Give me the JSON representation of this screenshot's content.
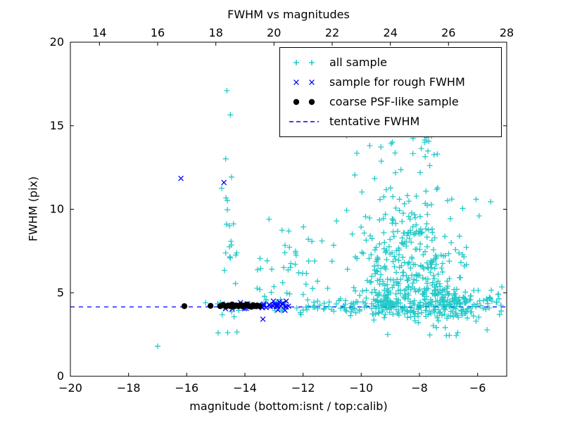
{
  "chart_data": {
    "type": "scatter",
    "title": "FWHM vs magnitudes",
    "xlabel": "magnitude (bottom:isnt / top:calib)",
    "ylabel": "FWHM (pix)",
    "xlim": [
      -20,
      -5
    ],
    "ylim": [
      0,
      20
    ],
    "grid": false,
    "legend_position": "upper right",
    "colors": {
      "background": "#ffffff",
      "axis": "#000000"
    },
    "x_ticks_bottom": {
      "values": [
        -20,
        -18,
        -16,
        -14,
        -12,
        -10,
        -8,
        -6
      ],
      "labels": [
        "−20",
        "−18",
        "−16",
        "−14",
        "−12",
        "−10",
        "−8",
        "−6"
      ]
    },
    "x_ticks_top": {
      "values": [
        14,
        16,
        18,
        20,
        22,
        24,
        26,
        28
      ],
      "labels": [
        "14",
        "16",
        "18",
        "20",
        "22",
        "24",
        "26",
        "28"
      ],
      "offset_from_bottom": 33
    },
    "y_ticks": {
      "values": [
        0,
        5,
        10,
        15,
        20
      ],
      "labels": [
        "0",
        "5",
        "10",
        "15",
        "20"
      ]
    },
    "tentative_fwhm_y": 4.15,
    "series": [
      {
        "name": "all sample",
        "marker": "plus",
        "color": "#00bfbf",
        "points": [
          [
            -17.0,
            1.8
          ],
          [
            -14.62,
            17.1
          ],
          [
            -14.5,
            15.65
          ],
          [
            -15.35,
            4.4
          ],
          [
            -14.92,
            2.6
          ],
          [
            -10.5,
            14.4
          ],
          [
            -10.15,
            13.35
          ],
          [
            -10.85,
            9.3
          ],
          [
            -11.35,
            8.1
          ],
          [
            -11.6,
            6.9
          ],
          [
            -6.05,
            10.6
          ],
          [
            -5.55,
            10.45
          ],
          [
            -5.95,
            9.6
          ],
          [
            -5.3,
            4.9
          ],
          [
            -5.2,
            4.25
          ],
          [
            -7.35,
            15.2
          ],
          [
            -8.05,
            15.45
          ],
          [
            -8.6,
            15.1
          ],
          [
            -12.15,
            6.2
          ],
          [
            -12.0,
            4.9
          ]
        ],
        "clusters": [
          {
            "n": 8,
            "x": {
              "dist": "uniform",
              "min": -15.0,
              "max": -13.0
            },
            "y": {
              "dist": "gauss",
              "mean": 4.3,
              "sd": 0.3,
              "min": 3.6,
              "max": 5.2
            }
          },
          {
            "n": 25,
            "x": {
              "dist": "uniform",
              "min": -13.0,
              "max": -11.2
            },
            "y": {
              "dist": "gauss",
              "mean": 4.2,
              "sd": 0.22,
              "min": 3.5,
              "max": 5.0
            }
          },
          {
            "n": 40,
            "x": {
              "dist": "uniform",
              "min": -11.2,
              "max": -9.6
            },
            "y": {
              "dist": "gauss",
              "mean": 4.2,
              "sd": 0.28,
              "min": 3.2,
              "max": 5.3
            }
          },
          {
            "n": 130,
            "x": {
              "dist": "uniform",
              "min": -9.6,
              "max": -7.9
            },
            "y": {
              "dist": "gauss",
              "mean": 4.3,
              "sd": 0.38,
              "min": 3.0,
              "max": 5.6
            }
          },
          {
            "n": 130,
            "x": {
              "dist": "uniform",
              "min": -7.9,
              "max": -6.4
            },
            "y": {
              "dist": "gauss",
              "mean": 4.3,
              "sd": 0.45,
              "min": 2.8,
              "max": 5.8
            }
          },
          {
            "n": 40,
            "x": {
              "dist": "uniform",
              "min": -6.4,
              "max": -5.15
            },
            "y": {
              "dist": "gauss",
              "mean": 4.3,
              "sd": 0.5,
              "min": 3.0,
              "max": 6.2
            }
          },
          {
            "n": 270,
            "x": {
              "dist": "gauss",
              "mean": -8.35,
              "sd": 1.0,
              "min": -10.7,
              "max": -6.3
            },
            "y": {
              "dist": "halfgauss-up",
              "base": 4.9,
              "sd": 2.8,
              "max": 15.5
            }
          },
          {
            "n": 60,
            "x": {
              "dist": "gauss",
              "mean": -8.3,
              "sd": 0.75,
              "min": -10.3,
              "max": -6.6
            },
            "y": {
              "dist": "uniform",
              "min": 8.0,
              "max": 15.3
            }
          },
          {
            "n": 12,
            "x": {
              "dist": "gauss",
              "mean": -14.5,
              "sd": 0.15,
              "min": -14.85,
              "max": -14.15
            },
            "y": {
              "dist": "uniform",
              "min": 6.5,
              "max": 10.5
            }
          },
          {
            "n": 9,
            "x": {
              "dist": "gauss",
              "mean": -14.5,
              "sd": 0.18,
              "min": -14.9,
              "max": -14.1
            },
            "y": {
              "dist": "uniform",
              "min": 2.6,
              "max": 6.5
            }
          },
          {
            "n": 5,
            "x": {
              "dist": "gauss",
              "mean": -14.5,
              "sd": 0.15,
              "min": -14.8,
              "max": -14.2
            },
            "y": {
              "dist": "uniform",
              "min": 10.5,
              "max": 14.6
            }
          },
          {
            "n": 28,
            "x": {
              "dist": "uniform",
              "min": -13.6,
              "max": -12.4
            },
            "y": {
              "dist": "gauss",
              "mean": 5.6,
              "sd": 1.6,
              "min": 3.2,
              "max": 9.6
            }
          },
          {
            "n": 16,
            "x": {
              "dist": "uniform",
              "min": -12.4,
              "max": -10.8
            },
            "y": {
              "dist": "uniform",
              "min": 4.8,
              "max": 9.2
            }
          },
          {
            "n": 12,
            "x": {
              "dist": "uniform",
              "min": -9.6,
              "max": -5.6
            },
            "y": {
              "dist": "uniform",
              "min": 2.4,
              "max": 3.4
            }
          }
        ]
      },
      {
        "name": "sample for rough FWHM",
        "marker": "x",
        "color": "#0000ff",
        "points": [
          [
            -16.2,
            11.85
          ],
          [
            -14.72,
            11.6
          ],
          [
            -13.38,
            3.42
          ],
          [
            -12.5,
            4.2
          ],
          [
            -12.58,
            4.5
          ],
          [
            -12.62,
            3.95
          ]
        ],
        "clusters": [
          {
            "n": 26,
            "x": {
              "dist": "uniform",
              "min": -13.5,
              "max": -12.55
            },
            "y": {
              "dist": "gauss",
              "mean": 4.25,
              "sd": 0.13,
              "min": 3.85,
              "max": 4.7
            }
          },
          {
            "n": 14,
            "x": {
              "dist": "uniform",
              "min": -14.7,
              "max": -13.5
            },
            "y": {
              "dist": "gauss",
              "mean": 4.2,
              "sd": 0.1,
              "min": 3.95,
              "max": 4.5
            }
          }
        ]
      },
      {
        "name": "coarse PSF-like sample",
        "marker": "dot",
        "color": "#000000",
        "points": [
          [
            -16.08,
            4.2
          ],
          [
            -15.18,
            4.22
          ],
          [
            -14.85,
            4.2
          ],
          [
            -14.75,
            4.28
          ],
          [
            -14.65,
            4.18
          ],
          [
            -14.58,
            4.24
          ],
          [
            -14.5,
            4.2
          ],
          [
            -14.44,
            4.3
          ],
          [
            -14.37,
            4.18
          ],
          [
            -14.3,
            4.24
          ],
          [
            -14.22,
            4.2
          ],
          [
            -14.15,
            4.28
          ],
          [
            -14.08,
            4.18
          ],
          [
            -14.0,
            4.24
          ],
          [
            -13.93,
            4.3
          ],
          [
            -13.86,
            4.2
          ],
          [
            -13.79,
            4.16
          ],
          [
            -13.72,
            4.26
          ],
          [
            -13.65,
            4.2
          ],
          [
            -13.58,
            4.24
          ],
          [
            -13.5,
            4.2
          ]
        ]
      },
      {
        "name": "tentative FWHM",
        "type": "hline",
        "linestyle": "dashed",
        "color": "#0000ff",
        "y": 4.15
      }
    ]
  }
}
